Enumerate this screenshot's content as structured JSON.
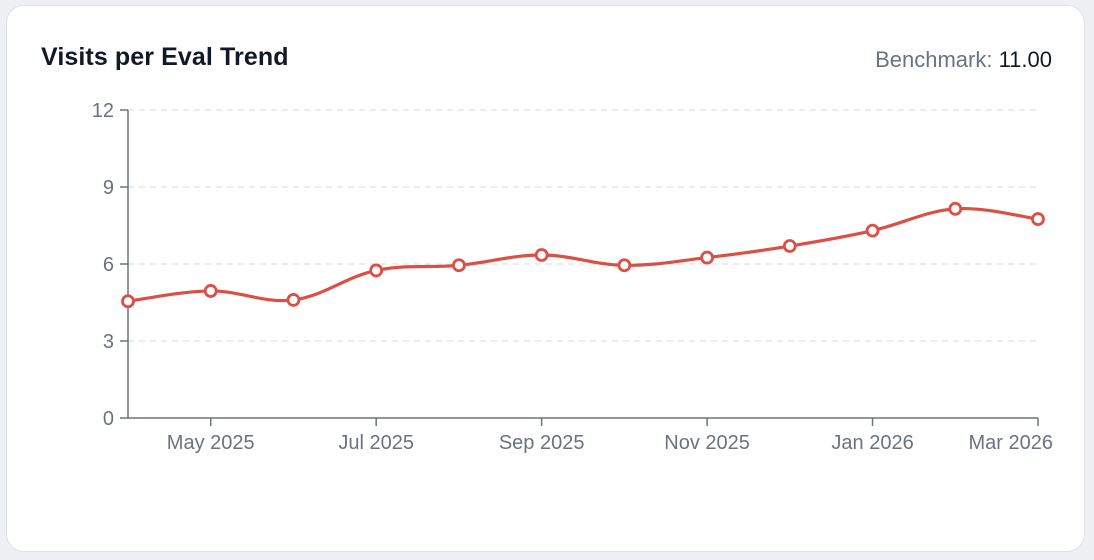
{
  "header": {
    "title": "Visits per Eval Trend",
    "benchmark_label": "Benchmark:",
    "benchmark_value": "11.00"
  },
  "colors": {
    "line": "#dc4f45",
    "axis": "#6b7280",
    "grid": "#e3e5ea"
  },
  "chart_data": {
    "type": "line",
    "title": "Visits per Eval Trend",
    "xlabel": "",
    "ylabel": "",
    "ylim": [
      0,
      12
    ],
    "yticks": [
      0,
      3,
      6,
      9,
      12
    ],
    "grid": "horizontal dashed",
    "x": [
      "2025-04",
      "2025-05",
      "2025-06",
      "2025-07",
      "2025-08",
      "2025-09",
      "2025-10",
      "2025-11",
      "2025-12",
      "2026-01",
      "2026-02",
      "2026-03"
    ],
    "xtick_labels": [
      {
        "x": "2025-05",
        "label": "May 2025"
      },
      {
        "x": "2025-07",
        "label": "Jul 2025"
      },
      {
        "x": "2025-09",
        "label": "Sep 2025"
      },
      {
        "x": "2025-11",
        "label": "Nov 2025"
      },
      {
        "x": "2026-01",
        "label": "Jan 2026"
      },
      {
        "x": "2026-03",
        "label": "Mar 2026"
      }
    ],
    "series": [
      {
        "values": [
          4.55,
          4.95,
          4.6,
          5.75,
          5.95,
          6.35,
          5.95,
          6.25,
          6.7,
          7.3,
          8.15,
          7.75
        ]
      }
    ]
  }
}
